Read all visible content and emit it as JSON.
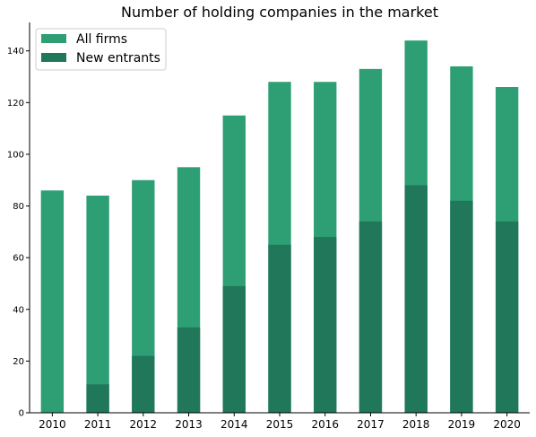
{
  "chart_data": {
    "type": "bar",
    "stacked": false,
    "overlaid": true,
    "title": "Number of holding companies in the market",
    "xlabel": "",
    "ylabel": "",
    "categories": [
      "2010",
      "2011",
      "2012",
      "2013",
      "2014",
      "2015",
      "2016",
      "2017",
      "2018",
      "2019",
      "2020"
    ],
    "series": [
      {
        "name": "All firms",
        "color": "#2e9e74",
        "values": [
          86,
          84,
          90,
          95,
          115,
          128,
          128,
          133,
          144,
          134,
          126
        ]
      },
      {
        "name": "New entrants",
        "color": "#21775a",
        "values": [
          0,
          11,
          22,
          33,
          49,
          65,
          68,
          74,
          88,
          82,
          74
        ]
      }
    ],
    "ylim": [
      0,
      151
    ],
    "yticks": [
      0,
      20,
      40,
      60,
      80,
      100,
      120,
      140
    ],
    "grid": false,
    "legend_position": "top-left"
  }
}
